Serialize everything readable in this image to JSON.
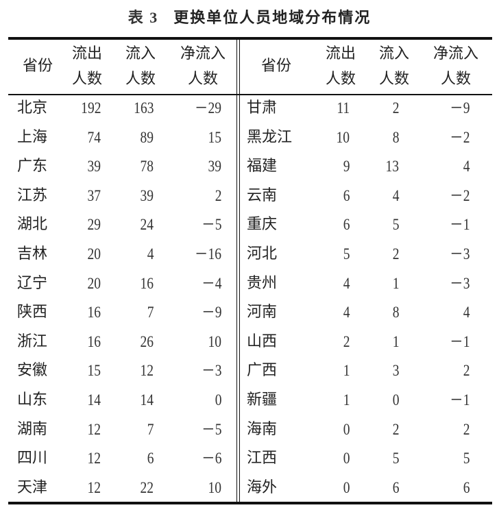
{
  "title": {
    "label": "表 3",
    "text": "更换单位人员地域分布情况"
  },
  "headers": {
    "province": "省份",
    "outflow": [
      "流出",
      "人数"
    ],
    "inflow": [
      "流入",
      "人数"
    ],
    "net": [
      "净流入",
      "人数"
    ]
  },
  "left_rows": [
    [
      "北京",
      "192",
      "163",
      "－29"
    ],
    [
      "上海",
      "74",
      "89",
      "15"
    ],
    [
      "广东",
      "39",
      "78",
      "39"
    ],
    [
      "江苏",
      "37",
      "39",
      "2"
    ],
    [
      "湖北",
      "29",
      "24",
      "－5"
    ],
    [
      "吉林",
      "20",
      "4",
      "－16"
    ],
    [
      "辽宁",
      "20",
      "16",
      "－4"
    ],
    [
      "陕西",
      "16",
      "7",
      "－9"
    ],
    [
      "浙江",
      "16",
      "26",
      "10"
    ],
    [
      "安徽",
      "15",
      "12",
      "－3"
    ],
    [
      "山东",
      "14",
      "14",
      "0"
    ],
    [
      "湖南",
      "12",
      "7",
      "－5"
    ],
    [
      "四川",
      "12",
      "6",
      "－6"
    ],
    [
      "天津",
      "12",
      "22",
      "10"
    ]
  ],
  "right_rows": [
    [
      "甘肃",
      "11",
      "2",
      "－9"
    ],
    [
      "黑龙江",
      "10",
      "8",
      "－2"
    ],
    [
      "福建",
      "9",
      "13",
      "4"
    ],
    [
      "云南",
      "6",
      "4",
      "－2"
    ],
    [
      "重庆",
      "6",
      "5",
      "－1"
    ],
    [
      "河北",
      "5",
      "2",
      "－3"
    ],
    [
      "贵州",
      "4",
      "1",
      "－3"
    ],
    [
      "河南",
      "4",
      "8",
      "4"
    ],
    [
      "山西",
      "2",
      "1",
      "－1"
    ],
    [
      "广西",
      "1",
      "3",
      "2"
    ],
    [
      "新疆",
      "1",
      "0",
      "－1"
    ],
    [
      "海南",
      "0",
      "2",
      "2"
    ],
    [
      "江西",
      "0",
      "5",
      "5"
    ],
    [
      "海外",
      "0",
      "6",
      "6"
    ]
  ]
}
